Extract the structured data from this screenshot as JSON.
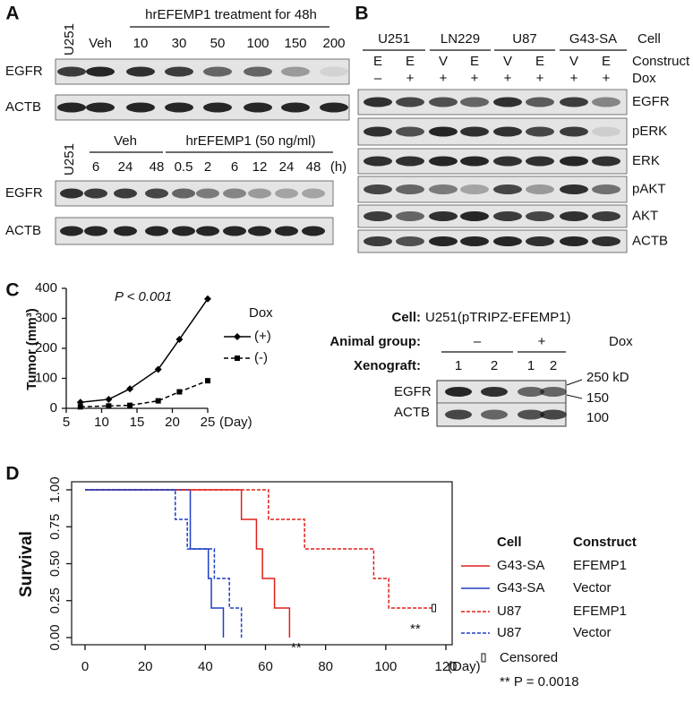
{
  "panels": {
    "a": {
      "label": "A",
      "top": {
        "cell": "U251",
        "treatment": "hrEFEMP1 treatment for 48h",
        "lanes": [
          "Veh",
          "10",
          "30",
          "50",
          "100",
          "150",
          "200"
        ],
        "rows": [
          "EGFR",
          "ACTB"
        ]
      },
      "bottom": {
        "cell": "U251",
        "veh": "Veh",
        "treatment": "hrEFEMP1 (50 ng/ml)",
        "lanes": [
          "6",
          "24",
          "48",
          "0.5",
          "2",
          "6",
          "12",
          "24",
          "48"
        ],
        "unit": "(h)",
        "rows": [
          "EGFR",
          "ACTB"
        ]
      }
    },
    "b": {
      "label": "B",
      "cells": [
        "U251",
        "LN229",
        "U87",
        "G43-SA"
      ],
      "cell_title": "Cell",
      "constructs": [
        "E",
        "E",
        "V",
        "E",
        "V",
        "E",
        "V",
        "E"
      ],
      "construct_title": "Construct",
      "dox": [
        "–",
        "+",
        "+",
        "+",
        "+",
        "+",
        "+",
        "+"
      ],
      "dox_title": "Dox",
      "rows": [
        "EGFR",
        "pERK",
        "ERK",
        "pAKT",
        "AKT",
        "ACTB"
      ]
    },
    "c": {
      "label": "C",
      "blot": {
        "cell_label": "Cell:",
        "cell": "U251(pTRIPZ-EFEMP1)",
        "group_label": "Animal group:",
        "groups": [
          "–",
          "+"
        ],
        "dox": "Dox",
        "xenograft_label": "Xenograft:",
        "xenografts": [
          "1",
          "2",
          "1",
          "2"
        ],
        "markers": [
          "250 kD",
          "150",
          "100"
        ],
        "rows": [
          "EGFR",
          "ACTB"
        ]
      }
    },
    "d": {
      "label": "D"
    }
  },
  "chart_data": [
    {
      "type": "line",
      "y_label": "Tumor (mm³)",
      "x_label": "(Day)",
      "annotation": "P < 0.001",
      "legend_title": "Dox",
      "x": [
        7,
        11,
        14,
        18,
        21,
        25
      ],
      "xlim": [
        5,
        25
      ],
      "xticks": [
        5,
        10,
        15,
        20,
        25
      ],
      "ylim": [
        0,
        400
      ],
      "yticks": [
        0,
        100,
        200,
        300,
        400
      ],
      "series": [
        {
          "name": "(+)",
          "color": "#000000",
          "dash": false,
          "marker": "diamond",
          "values": [
            20,
            30,
            65,
            130,
            230,
            365
          ]
        },
        {
          "name": "(-)",
          "color": "#000000",
          "dash": true,
          "marker": "square",
          "values": [
            5,
            8,
            10,
            25,
            55,
            92
          ]
        }
      ]
    },
    {
      "type": "step",
      "y_label": "Survival",
      "x_label": "(Day)",
      "legend_headers": [
        "Cell",
        "Construct"
      ],
      "censored_label": "Censored",
      "annotations": [
        "**",
        "**"
      ],
      "p_value": "** P = 0.0018",
      "xlim": [
        0,
        120
      ],
      "xticks": [
        0,
        20,
        40,
        60,
        80,
        100,
        120
      ],
      "ylim": [
        0,
        1
      ],
      "yticks": [
        {
          "value": 0,
          "label": "0.00"
        },
        {
          "value": 0.25,
          "label": "0.25"
        },
        {
          "value": 0.5,
          "label": "0.50"
        },
        {
          "value": 0.75,
          "label": "0.75"
        },
        {
          "value": 1,
          "label": "1.00"
        }
      ],
      "series": [
        {
          "name": "G43-SA",
          "construct": "EFEMP1",
          "color": "#e0201b",
          "dash": false,
          "x": [
            0,
            52,
            57,
            59,
            63,
            68
          ],
          "values": [
            1,
            0.8,
            0.6,
            0.4,
            0.2,
            0
          ]
        },
        {
          "name": "G43-SA",
          "construct": "Vector",
          "color": "#1f3fc4",
          "dash": false,
          "x": [
            0,
            35,
            41,
            42,
            46
          ],
          "values": [
            1,
            0.6,
            0.4,
            0.2,
            0
          ]
        },
        {
          "name": "U87",
          "construct": "EFEMP1",
          "color": "#e0201b",
          "dash": true,
          "x": [
            0,
            61,
            73,
            96,
            101,
            116
          ],
          "values": [
            1,
            0.8,
            0.6,
            0.4,
            0.2,
            0.2
          ],
          "censored_x": [
            116
          ],
          "censored_values": [
            0.2
          ]
        },
        {
          "name": "U87",
          "construct": "Vector",
          "color": "#1f3fc4",
          "dash": true,
          "x": [
            0,
            30,
            34,
            43,
            48,
            52
          ],
          "values": [
            1,
            0.8,
            0.6,
            0.4,
            0.2,
            0
          ]
        }
      ]
    }
  ]
}
